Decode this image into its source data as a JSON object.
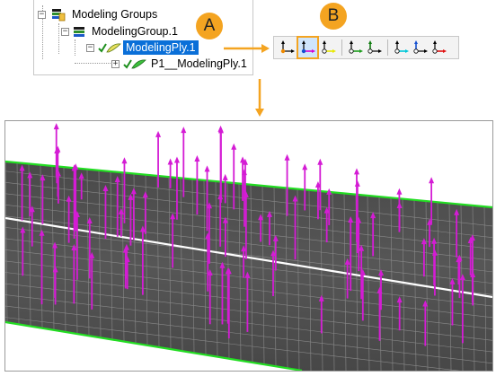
{
  "tree": {
    "items": [
      {
        "label": "Modeling Groups",
        "expander": "−"
      },
      {
        "label": "ModelingGroup.1",
        "expander": "−"
      },
      {
        "label": "ModelingPly.1",
        "expander": "−",
        "selected": true
      },
      {
        "label": "P1__ModelingPly.1",
        "expander": "+"
      }
    ]
  },
  "callouts": {
    "a": "A",
    "b": "B"
  },
  "toolbar": {
    "buttons": [
      {
        "icon": "axis-orange-icon",
        "color": "#f08a00"
      },
      {
        "icon": "axis-magenta-icon",
        "color": "#d400d4",
        "active": true
      },
      {
        "icon": "axis-yellow-icon",
        "color": "#e8e800"
      },
      {
        "icon": "axis-green-icon",
        "color": "#1e9e1e"
      },
      {
        "icon": "axis-darkgreen-icon",
        "color": "#0c7a0c"
      },
      {
        "icon": "axis-cyan-icon",
        "color": "#00c8d8"
      },
      {
        "icon": "axis-blue-icon",
        "color": "#1450d0"
      },
      {
        "icon": "axis-red-icon",
        "color": "#e01010"
      }
    ]
  },
  "colors": {
    "accent": "#f4a421",
    "selection": "#0a6fd8",
    "arrow": "#d41cd4",
    "mesh_edge": "#22dd22",
    "mesh": "#505050"
  }
}
